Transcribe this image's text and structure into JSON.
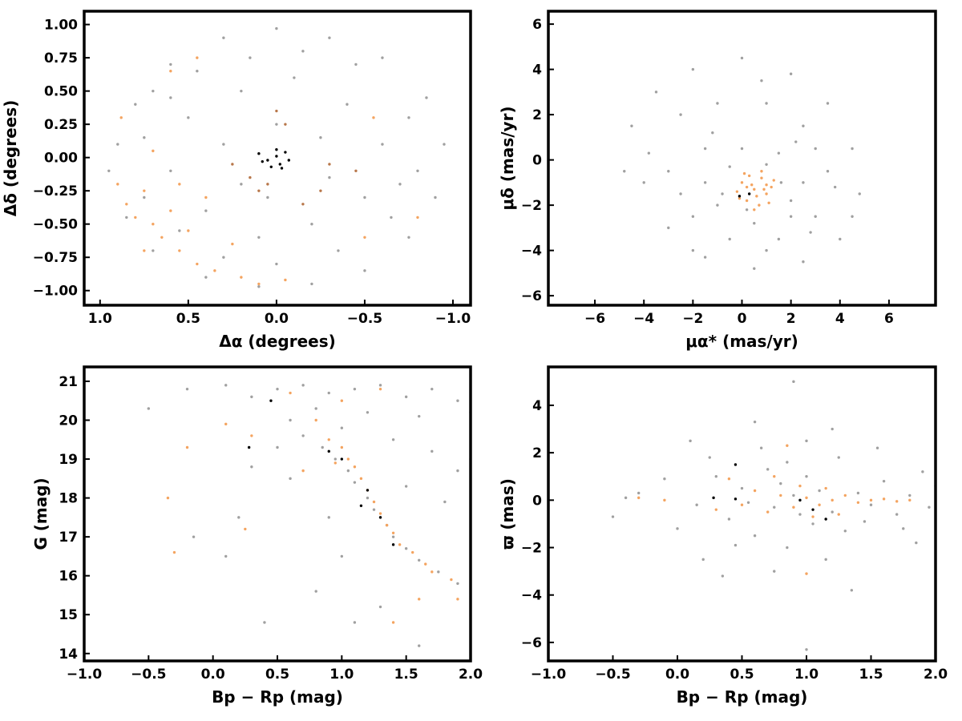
{
  "chart_data": [
    {
      "type": "scatter",
      "xlabel": "Δα (degrees)",
      "ylabel": "Δδ (degrees)",
      "xlim": [
        1.09,
        -1.1
      ],
      "ylim": [
        -1.11,
        1.1
      ],
      "xticks": [
        {
          "value": 1.0,
          "label": "1.0"
        },
        {
          "value": 0.5,
          "label": "0.5"
        },
        {
          "value": 0.0,
          "label": "0.0"
        },
        {
          "value": -0.5,
          "label": "−0.5"
        },
        {
          "value": -1.0,
          "label": "−1.0"
        }
      ],
      "yticks": [
        {
          "value": -1.0,
          "label": "−1.00"
        },
        {
          "value": -0.75,
          "label": "−0.75"
        },
        {
          "value": -0.5,
          "label": "−0.50"
        },
        {
          "value": -0.25,
          "label": "−0.25"
        },
        {
          "value": 0.0,
          "label": "0.00"
        },
        {
          "value": 0.25,
          "label": "0.25"
        },
        {
          "value": 0.5,
          "label": "0.50"
        },
        {
          "value": 0.75,
          "label": "0.75"
        },
        {
          "value": 1.0,
          "label": "1.00"
        }
      ],
      "series": [
        {
          "color": "#a0a0a0",
          "x": [
            0.9,
            0.8,
            0.6,
            0.3,
            0.0,
            -0.3,
            -0.6,
            -0.85,
            -0.95,
            -0.9,
            -0.75,
            -0.5,
            -0.2,
            0.1,
            0.4,
            0.7,
            0.85,
            0.95,
            0.5,
            0.2,
            -0.1,
            -0.4,
            -0.6,
            -0.5,
            -0.2,
            0.1,
            0.4,
            0.6,
            0.3,
            0.0,
            -0.25,
            -0.3,
            0.05,
            0.2,
            0.7,
            0.45,
            -0.15,
            -0.45,
            -0.75,
            -0.8,
            -0.65,
            -0.35,
            0.0,
            0.3,
            0.55,
            0.75,
            0.75,
            0.15,
            -0.7,
            0.6
          ],
          "values": [
            0.1,
            0.4,
            0.7,
            0.9,
            0.97,
            0.9,
            0.75,
            0.45,
            0.1,
            -0.3,
            -0.6,
            -0.85,
            -0.95,
            -0.97,
            -0.9,
            -0.7,
            -0.45,
            -0.1,
            0.3,
            0.5,
            0.6,
            0.4,
            0.1,
            -0.3,
            -0.5,
            -0.6,
            -0.4,
            -0.1,
            0.1,
            0.25,
            0.15,
            -0.15,
            -0.3,
            -0.2,
            0.5,
            0.65,
            0.8,
            0.7,
            0.3,
            -0.1,
            -0.45,
            -0.7,
            -0.8,
            -0.75,
            -0.55,
            -0.3,
            0.15,
            0.75,
            -0.2,
            0.45
          ]
        },
        {
          "color": "#f4a460",
          "x": [
            0.9,
            0.85,
            0.8,
            0.75,
            0.7,
            0.65,
            0.6,
            0.55,
            0.5,
            0.45,
            0.4,
            0.35,
            0.2,
            0.1,
            -0.05,
            -0.5,
            -0.8,
            0.6,
            0.45,
            0.7,
            0.88,
            0.25,
            -0.55,
            0.55,
            0.75
          ],
          "values": [
            -0.2,
            -0.35,
            -0.45,
            -0.25,
            -0.5,
            -0.6,
            -0.4,
            -0.7,
            -0.55,
            -0.8,
            -0.3,
            -0.85,
            -0.9,
            -0.95,
            -0.92,
            -0.6,
            -0.45,
            0.65,
            0.75,
            0.05,
            0.3,
            -0.65,
            0.3,
            -0.2,
            -0.7
          ]
        },
        {
          "color": "#b8774a",
          "x": [
            0.0,
            -0.05,
            0.15,
            -0.25,
            -0.3,
            0.1,
            -0.45,
            0.25,
            -0.15,
            0.05
          ],
          "values": [
            0.35,
            0.25,
            -0.15,
            -0.25,
            -0.05,
            -0.25,
            -0.1,
            -0.05,
            -0.35,
            -0.2
          ]
        },
        {
          "color": "#000000",
          "x": [
            0.1,
            0.05,
            0.0,
            -0.05,
            0.03,
            0.08,
            -0.02,
            -0.07,
            0.0,
            -0.03
          ],
          "values": [
            0.03,
            -0.02,
            0.01,
            0.04,
            -0.07,
            -0.03,
            -0.05,
            -0.02,
            0.06,
            -0.08
          ]
        }
      ]
    },
    {
      "type": "scatter",
      "xlabel": "μα* (mas/yr)",
      "ylabel": "μδ (mas/yr)",
      "xlim": [
        -7.9,
        7.9
      ],
      "ylim": [
        -6.42,
        6.57
      ],
      "xticks": [
        {
          "value": -6,
          "label": "−6"
        },
        {
          "value": -4,
          "label": "−4"
        },
        {
          "value": -2,
          "label": "−2"
        },
        0,
        2,
        4,
        6
      ],
      "yticks": [
        {
          "value": -6,
          "label": "−6"
        },
        {
          "value": -4,
          "label": "−4"
        },
        {
          "value": -2,
          "label": "−2"
        },
        0,
        2,
        4,
        6
      ],
      "series": [
        {
          "color": "#a0a0a0",
          "x": [
            -4.5,
            -3.5,
            -2,
            0,
            2,
            3.5,
            4.5,
            4.8,
            4,
            2.5,
            0.5,
            -1.5,
            -3,
            -4,
            -4.8,
            -2.5,
            -1,
            1,
            2.5,
            3.5,
            3,
            1.5,
            -0.5,
            -2,
            -3,
            -1.5,
            0,
            1.5,
            2.5,
            2,
            0.5,
            -1,
            -1.5,
            -0.5,
            1,
            2,
            0.2,
            -0.8,
            1.6,
            3,
            -2,
            4.5,
            -3.8,
            0.8,
            -1.2,
            2.2,
            3.8,
            1,
            -2.5,
            2.8
          ],
          "values": [
            1.5,
            3,
            4,
            4.5,
            3.8,
            2.5,
            0.5,
            -1.5,
            -3.5,
            -4.5,
            -4.8,
            -4.3,
            -3,
            -1,
            -0.5,
            2,
            2.5,
            2.5,
            1.5,
            -0.5,
            -2.5,
            -3.5,
            -3.5,
            -2.5,
            -0.5,
            0.5,
            0.5,
            0.3,
            -1,
            -2.5,
            -2.8,
            -2,
            -1,
            -0.3,
            -0.2,
            -1.8,
            -2.2,
            -1.5,
            -1,
            0.5,
            -4,
            -2.5,
            0.3,
            3.5,
            1.2,
            0.8,
            -1.2,
            -4,
            -1.5,
            -3.2
          ]
        },
        {
          "color": "#f4a460",
          "x": [
            0.5,
            0,
            1,
            0.3,
            0.8,
            1.2,
            0.2,
            0.7,
            -0.2,
            1.1,
            0.4,
            0.9,
            0.1,
            0.6,
            1.3,
            -0.1,
            0.5,
            0.8,
            0.2,
            1
          ],
          "values": [
            -1.3,
            -1,
            -1.5,
            -0.7,
            -0.8,
            -1.2,
            -1.8,
            -2,
            -1.4,
            -1.9,
            -1.1,
            -1.3,
            -0.6,
            -1.6,
            -0.9,
            -1.7,
            -2.2,
            -0.5,
            -1.2,
            -1.1
          ]
        },
        {
          "color": "#000000",
          "x": [
            -0.1,
            0.3
          ],
          "values": [
            -1.6,
            -1.5
          ]
        }
      ]
    },
    {
      "type": "scatter",
      "xlabel": "Bp − Rp (mag)",
      "ylabel": "G (mag)",
      "xlim": [
        -1.0,
        2.0
      ],
      "ylim": [
        13.81,
        21.37
      ],
      "xticks": [
        {
          "value": -1.0,
          "label": "−1.0"
        },
        {
          "value": -0.5,
          "label": "−0.5"
        },
        {
          "value": 0.0,
          "label": "0.0"
        },
        {
          "value": 0.5,
          "label": "0.5"
        },
        {
          "value": 1.0,
          "label": "1.0"
        },
        {
          "value": 1.5,
          "label": "1.5"
        },
        {
          "value": 2.0,
          "label": "2.0"
        }
      ],
      "yticks": [
        14,
        15,
        16,
        17,
        18,
        19,
        20,
        21
      ],
      "series": [
        {
          "color": "#a0a0a0",
          "x": [
            -0.5,
            -0.2,
            0.1,
            0.3,
            0.5,
            0.7,
            0.9,
            1.1,
            1.3,
            1.5,
            1.7,
            1.9,
            2.0,
            1.6,
            1.2,
            0.8,
            0.6,
            0.7,
            0.85,
            0.95,
            1.05,
            1.1,
            1.2,
            1.25,
            1.35,
            1.4,
            1.5,
            1.6,
            1.75,
            1.9,
            1.7,
            1.9,
            1.5,
            0.5,
            0.3,
            0.9,
            0.6,
            1.0,
            1.3,
            1.1,
            0.4,
            1.6,
            -0.15,
            0.1,
            0.8,
            1.4,
            1.0,
            0.2,
            1.8,
            2.0
          ],
          "values": [
            20.3,
            20.8,
            20.9,
            20.6,
            20.8,
            20.9,
            20.7,
            20.8,
            20.9,
            20.6,
            20.8,
            20.5,
            20.2,
            20.1,
            20.2,
            20.3,
            20.0,
            19.6,
            19.3,
            19.0,
            18.7,
            18.4,
            18.0,
            17.7,
            17.3,
            17.0,
            16.7,
            16.4,
            16.1,
            15.8,
            19.2,
            18.7,
            18.3,
            19.3,
            18.8,
            17.5,
            18.5,
            16.5,
            15.2,
            14.8,
            14.8,
            14.2,
            17.0,
            16.5,
            15.6,
            19.5,
            19.8,
            17.5,
            17.9,
            19.0
          ]
        },
        {
          "color": "#f4a460",
          "x": [
            0.9,
            1.0,
            1.05,
            1.1,
            1.15,
            1.2,
            1.25,
            1.3,
            1.35,
            1.4,
            1.45,
            1.55,
            1.65,
            1.7,
            1.85,
            1.9,
            0.8,
            1.0,
            0.6,
            0.3,
            -0.35,
            -0.3,
            -0.2,
            0.25,
            1.4,
            0.7,
            1.3,
            0.1,
            1.6,
            0.95
          ],
          "values": [
            19.5,
            19.3,
            19.0,
            18.8,
            18.5,
            18.2,
            17.9,
            17.6,
            17.3,
            17.1,
            16.8,
            16.6,
            16.3,
            16.1,
            15.9,
            15.4,
            20.0,
            20.5,
            20.7,
            19.6,
            18.0,
            16.6,
            19.3,
            17.2,
            14.8,
            18.7,
            20.8,
            19.9,
            15.4,
            18.9
          ]
        },
        {
          "color": "#000000",
          "x": [
            0.28,
            0.45,
            0.9,
            1.0,
            1.2,
            1.15,
            1.3,
            1.4
          ],
          "values": [
            19.3,
            20.5,
            19.2,
            19.0,
            18.2,
            17.8,
            17.5,
            16.8
          ]
        }
      ]
    },
    {
      "type": "scatter",
      "xlabel": "Bp − Rp (mag)",
      "ylabel": "ϖ (mas)",
      "xlim": [
        -1.0,
        2.0
      ],
      "ylim": [
        -6.78,
        5.62
      ],
      "xticks": [
        {
          "value": -1.0,
          "label": "−1.0"
        },
        {
          "value": -0.5,
          "label": "−0.5"
        },
        {
          "value": 0.0,
          "label": "0.0"
        },
        {
          "value": 0.5,
          "label": "0.5"
        },
        {
          "value": 1.0,
          "label": "1.0"
        },
        {
          "value": 1.5,
          "label": "1.5"
        },
        {
          "value": 2.0,
          "label": "2.0"
        }
      ],
      "yticks": [
        {
          "value": -6,
          "label": "−6"
        },
        {
          "value": -4,
          "label": "−4"
        },
        {
          "value": -2,
          "label": "−2"
        },
        0,
        2,
        4
      ],
      "series": [
        {
          "color": "#a0a0a0",
          "x": [
            -0.5,
            -0.3,
            0.0,
            0.1,
            0.3,
            0.4,
            0.5,
            0.6,
            0.7,
            0.75,
            0.8,
            0.85,
            0.9,
            0.95,
            1.0,
            1.05,
            1.1,
            1.2,
            1.25,
            1.3,
            1.4,
            1.5,
            1.6,
            1.7,
            1.8,
            1.9,
            2.0,
            1.85,
            1.55,
            0.2,
            0.35,
            0.9,
            1.0,
            1.2,
            0.6,
            -0.1,
            0.45,
            1.35,
            0.65,
            1.75,
            0.15,
            1.15,
            0.55,
            0.85,
            1.45,
            -0.4,
            0.25,
            1.95,
            1.0,
            0.75
          ],
          "values": [
            -0.7,
            0.3,
            -1.2,
            2.5,
            1.0,
            -0.8,
            0.5,
            -1.5,
            1.3,
            -0.3,
            0.7,
            -2.0,
            0.2,
            -0.6,
            1.0,
            -1.0,
            0.4,
            -0.5,
            1.8,
            -1.3,
            0.3,
            -0.2,
            0.8,
            -0.6,
            0.2,
            1.2,
            0.6,
            -1.8,
            2.2,
            -2.5,
            -3.2,
            5.0,
            -6.3,
            3.0,
            3.3,
            0.9,
            -1.9,
            -3.8,
            2.2,
            -1.2,
            -0.2,
            -2.5,
            -0.1,
            1.6,
            -0.9,
            0.1,
            1.8,
            -0.3,
            2.5,
            -3.0
          ]
        },
        {
          "color": "#f4a460",
          "x": [
            0.8,
            0.9,
            1.0,
            1.1,
            1.2,
            1.3,
            1.4,
            1.5,
            1.6,
            1.7,
            1.8,
            0.7,
            0.6,
            0.95,
            1.05,
            0.5,
            -0.1,
            -0.3,
            0.85,
            1.0,
            0.4,
            1.25,
            0.75,
            1.15,
            0.3
          ],
          "values": [
            0.2,
            -0.3,
            0.1,
            -0.2,
            0.0,
            0.2,
            -0.1,
            0.0,
            0.05,
            -0.05,
            0.0,
            -0.5,
            0.4,
            0.6,
            -0.7,
            -0.2,
            0.0,
            0.1,
            2.3,
            -3.1,
            0.9,
            -0.6,
            1.0,
            0.5,
            -0.4
          ]
        },
        {
          "color": "#000000",
          "x": [
            0.28,
            0.45,
            0.95,
            1.05,
            1.15,
            0.45
          ],
          "values": [
            0.1,
            1.5,
            0.0,
            -0.4,
            -0.8,
            0.05
          ]
        }
      ]
    }
  ]
}
